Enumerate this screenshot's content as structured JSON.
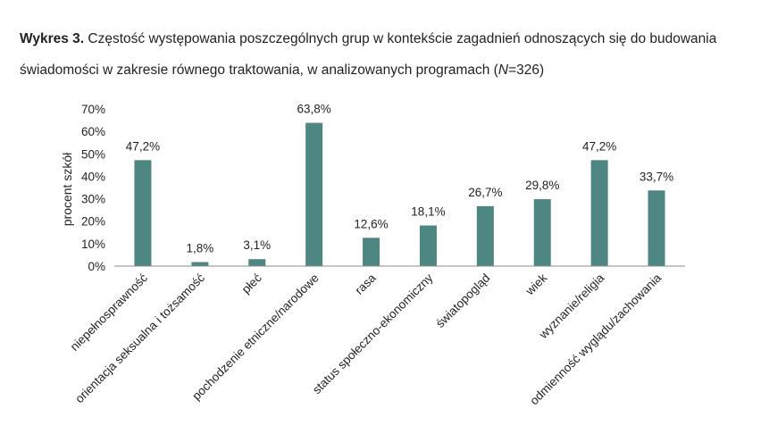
{
  "title": {
    "bold": "Wykres 3.",
    "text_before_n": " Częstość występowania poszczególnych grup w kontekście zagadnień odnoszących się do budowania świadomości w zakresie równego traktowania, w analizowanych programach (",
    "n_symbol": "N",
    "text_after_n": "=326)"
  },
  "colors": {
    "bar": "#4e8781",
    "axis": "#8c8c8c",
    "text": "#231f20"
  },
  "chart_data": {
    "type": "bar",
    "categories": [
      "niepełnosprawność",
      "orientacja seksualna i tożsamość",
      "płeć",
      "pochodzenie etniczne/narodowe",
      "rasa",
      "status społeczno-ekonomiczny",
      "światopogląd",
      "wiek",
      "wyznanie/religia",
      "odmienność wyglądu/zachowania"
    ],
    "values": [
      47.2,
      1.8,
      3.1,
      63.8,
      12.6,
      18.1,
      26.7,
      29.8,
      47.2,
      33.7
    ],
    "value_labels": [
      "47,2%",
      "1,8%",
      "3,1%",
      "63,8%",
      "12,6%",
      "18,1%",
      "26,7%",
      "29,8%",
      "47,2%",
      "33,7%"
    ],
    "yticks": [
      0,
      10,
      20,
      30,
      40,
      50,
      60,
      70
    ],
    "ytick_labels": [
      "0%",
      "10%",
      "20%",
      "30%",
      "40%",
      "50%",
      "60%",
      "70%"
    ],
    "ylabel": "procent szkół",
    "xlabel": "",
    "ylim": [
      0,
      70
    ],
    "grid": false,
    "legend": "none"
  }
}
